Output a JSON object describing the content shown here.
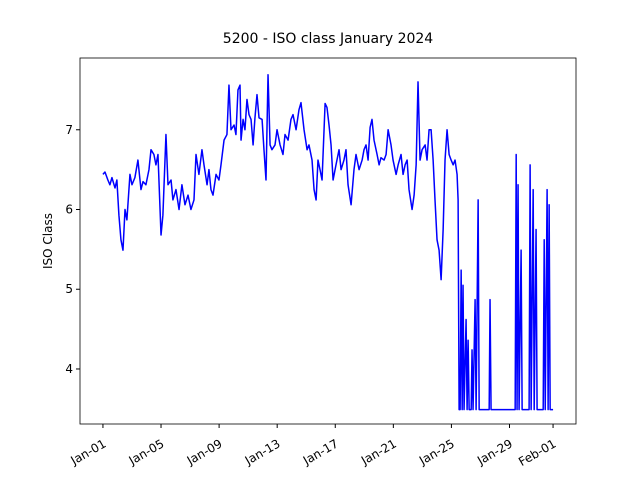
{
  "chart_data": {
    "type": "line",
    "title": "5200 - ISO class January 2024",
    "y_label": "ISO Class",
    "color": "#0000ff",
    "x": [
      0,
      0.14,
      0.34,
      0.48,
      0.62,
      0.83,
      0.96,
      1.1,
      1.24,
      1.38,
      1.52,
      1.65,
      1.86,
      2.0,
      2.2,
      2.41,
      2.62,
      2.76,
      2.96,
      3.17,
      3.31,
      3.51,
      3.65,
      3.79,
      4.0,
      4.13,
      4.34,
      4.48,
      4.69,
      4.82,
      5.03,
      5.24,
      5.44,
      5.65,
      5.86,
      6.06,
      6.27,
      6.41,
      6.61,
      6.82,
      6.96,
      7.17,
      7.3,
      7.44,
      7.58,
      7.79,
      7.99,
      8.13,
      8.34,
      8.54,
      8.68,
      8.82,
      9.03,
      9.16,
      9.3,
      9.44,
      9.51,
      9.65,
      9.78,
      9.92,
      10.06,
      10.2,
      10.34,
      10.47,
      10.61,
      10.75,
      10.96,
      11.09,
      11.23,
      11.37,
      11.51,
      11.64,
      11.85,
      11.99,
      12.2,
      12.4,
      12.54,
      12.75,
      12.95,
      13.09,
      13.3,
      13.5,
      13.64,
      13.85,
      14.06,
      14.19,
      14.4,
      14.54,
      14.68,
      14.81,
      14.95,
      15.09,
      15.3,
      15.43,
      15.57,
      15.71,
      15.85,
      16.05,
      16.26,
      16.4,
      16.6,
      16.74,
      16.88,
      17.09,
      17.29,
      17.43,
      17.64,
      17.85,
      17.98,
      18.12,
      18.26,
      18.4,
      18.53,
      18.67,
      18.88,
      19.02,
      19.15,
      19.36,
      19.5,
      19.64,
      19.84,
      19.98,
      20.19,
      20.33,
      20.53,
      20.67,
      20.81,
      20.95,
      21.08,
      21.29,
      21.43,
      21.57,
      21.7,
      21.84,
      21.98,
      22.19,
      22.32,
      22.46,
      22.6,
      22.74,
      22.87,
      23.01,
      23.15,
      23.29,
      23.43,
      23.56,
      23.7,
      23.84,
      23.98,
      24.12,
      24.25,
      24.39,
      24.46,
      24.53,
      24.6,
      24.67,
      24.74,
      24.8,
      24.87,
      25.01,
      25.08,
      25.15,
      25.22,
      25.36,
      25.42,
      25.49,
      25.63,
      25.7,
      25.84,
      25.91,
      26.6,
      26.66,
      26.73,
      28.39,
      28.46,
      28.52,
      28.59,
      28.66,
      28.8,
      28.87,
      29.35,
      29.42,
      29.49,
      29.63,
      29.7,
      29.83,
      29.9,
      30.32,
      30.39,
      30.46,
      30.59,
      30.66,
      30.73,
      30.8,
      31.0
    ],
    "values": [
      6.44,
      6.47,
      6.37,
      6.31,
      6.4,
      6.27,
      6.37,
      5.93,
      5.62,
      5.49,
      6.0,
      5.87,
      6.44,
      6.31,
      6.4,
      6.62,
      6.25,
      6.35,
      6.31,
      6.5,
      6.75,
      6.69,
      6.56,
      6.69,
      5.68,
      5.93,
      6.94,
      6.31,
      6.37,
      6.12,
      6.25,
      6.0,
      6.31,
      6.06,
      6.18,
      6.0,
      6.12,
      6.69,
      6.44,
      6.75,
      6.56,
      6.31,
      6.5,
      6.25,
      6.18,
      6.44,
      6.37,
      6.56,
      6.87,
      6.94,
      7.56,
      7.0,
      7.06,
      6.94,
      7.5,
      7.56,
      6.87,
      7.13,
      7.0,
      7.38,
      7.19,
      7.13,
      6.81,
      7.15,
      7.44,
      7.15,
      7.13,
      6.75,
      6.37,
      7.69,
      6.81,
      6.75,
      6.81,
      7.0,
      6.81,
      6.69,
      6.94,
      6.87,
      7.13,
      7.19,
      7.0,
      7.25,
      7.34,
      7.0,
      6.75,
      6.81,
      6.62,
      6.25,
      6.12,
      6.62,
      6.5,
      6.37,
      7.33,
      7.28,
      7.06,
      6.81,
      6.37,
      6.56,
      6.75,
      6.5,
      6.62,
      6.75,
      6.31,
      6.06,
      6.5,
      6.69,
      6.5,
      6.62,
      6.75,
      6.81,
      6.62,
      7.03,
      7.13,
      6.87,
      6.69,
      6.56,
      6.65,
      6.62,
      6.69,
      7.0,
      6.81,
      6.62,
      6.44,
      6.56,
      6.69,
      6.44,
      6.56,
      6.62,
      6.25,
      6.0,
      6.18,
      6.56,
      7.6,
      6.62,
      6.75,
      6.81,
      6.62,
      7.0,
      7.0,
      6.62,
      6.12,
      5.62,
      5.49,
      5.12,
      5.75,
      6.62,
      7.0,
      6.69,
      6.62,
      6.56,
      6.62,
      6.44,
      6.12,
      3.49,
      3.49,
      5.24,
      3.49,
      5.05,
      3.49,
      4.62,
      3.49,
      4.36,
      3.49,
      3.49,
      4.24,
      3.49,
      4.87,
      3.49,
      6.12,
      3.49,
      3.49,
      4.87,
      3.49,
      3.49,
      6.69,
      3.49,
      6.31,
      3.49,
      5.49,
      3.49,
      3.49,
      6.56,
      3.49,
      6.25,
      3.49,
      5.75,
      3.49,
      3.49,
      5.62,
      3.49,
      6.25,
      3.49,
      6.06,
      3.49,
      3.49
    ],
    "xlim": [
      -1.58,
      32.58
    ],
    "ylim": [
      3.31,
      7.9
    ],
    "xticks": [
      {
        "value": 0,
        "label": "Jan-01"
      },
      {
        "value": 4,
        "label": "Jan-05"
      },
      {
        "value": 8,
        "label": "Jan-09"
      },
      {
        "value": 12,
        "label": "Jan-13"
      },
      {
        "value": 16,
        "label": "Jan-17"
      },
      {
        "value": 20,
        "label": "Jan-21"
      },
      {
        "value": 24,
        "label": "Jan-25"
      },
      {
        "value": 28,
        "label": "Jan-29"
      },
      {
        "value": 31,
        "label": "Feb-01"
      }
    ],
    "yticks": [
      4,
      5,
      6,
      7
    ]
  }
}
